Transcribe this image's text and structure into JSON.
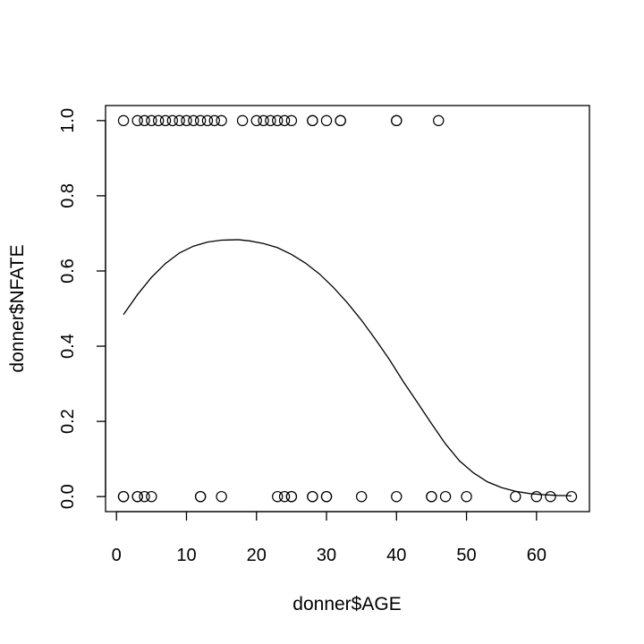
{
  "chart_data": {
    "type": "scatter",
    "title": "",
    "xlabel": "donner$AGE",
    "ylabel": "donner$NFATE",
    "xlim": [
      -1.56,
      67.56
    ],
    "ylim": [
      -0.04,
      1.04
    ],
    "x_ticks": [
      0,
      10,
      20,
      30,
      40,
      50,
      60
    ],
    "x_tick_labels": [
      "0",
      "10",
      "20",
      "30",
      "40",
      "50",
      "60"
    ],
    "y_ticks": [
      0,
      0.2,
      0.4,
      0.6,
      0.8,
      1
    ],
    "y_tick_labels": [
      "0.0",
      "0.2",
      "0.4",
      "0.6",
      "0.8",
      "1.0"
    ],
    "grid": false,
    "legend": "none",
    "series": [
      {
        "type": "scatter",
        "marker": "open-circle",
        "x": [
          1,
          3,
          4,
          5,
          6,
          7,
          8,
          9,
          10,
          11,
          12,
          13,
          14,
          15,
          18,
          20,
          21,
          22,
          23,
          24,
          25,
          28,
          28,
          30,
          32,
          32,
          40,
          40,
          46,
          1,
          1,
          3,
          3,
          4,
          5,
          12,
          12,
          15,
          23,
          24,
          25,
          25,
          28,
          28,
          30,
          30,
          35,
          40,
          45,
          45,
          47,
          50,
          57,
          60,
          62,
          65
        ],
        "y": [
          1,
          1,
          1,
          1,
          1,
          1,
          1,
          1,
          1,
          1,
          1,
          1,
          1,
          1,
          1,
          1,
          1,
          1,
          1,
          1,
          1,
          1,
          1,
          1,
          1,
          1,
          1,
          1,
          1,
          0,
          0,
          0,
          0,
          0,
          0,
          0,
          0,
          0,
          0,
          0,
          0,
          0,
          0,
          0,
          0,
          0,
          0,
          0,
          0,
          0,
          0,
          0,
          0,
          0,
          0,
          0
        ]
      },
      {
        "type": "line",
        "x": [
          1,
          3,
          5,
          7,
          9,
          11,
          13,
          15,
          17,
          17.5,
          19,
          21,
          23,
          25,
          27,
          29,
          31,
          33,
          35,
          37,
          39,
          41,
          43,
          45,
          47,
          49,
          51,
          53,
          55,
          57,
          59,
          61,
          63,
          65
        ],
        "y": [
          0.484,
          0.537,
          0.583,
          0.62,
          0.648,
          0.666,
          0.677,
          0.682,
          0.683,
          0.683,
          0.68,
          0.673,
          0.662,
          0.644,
          0.621,
          0.592,
          0.556,
          0.515,
          0.469,
          0.418,
          0.364,
          0.305,
          0.25,
          0.194,
          0.14,
          0.095,
          0.063,
          0.039,
          0.024,
          0.014,
          0.008,
          0.005,
          0.003,
          0.002
        ]
      }
    ]
  }
}
